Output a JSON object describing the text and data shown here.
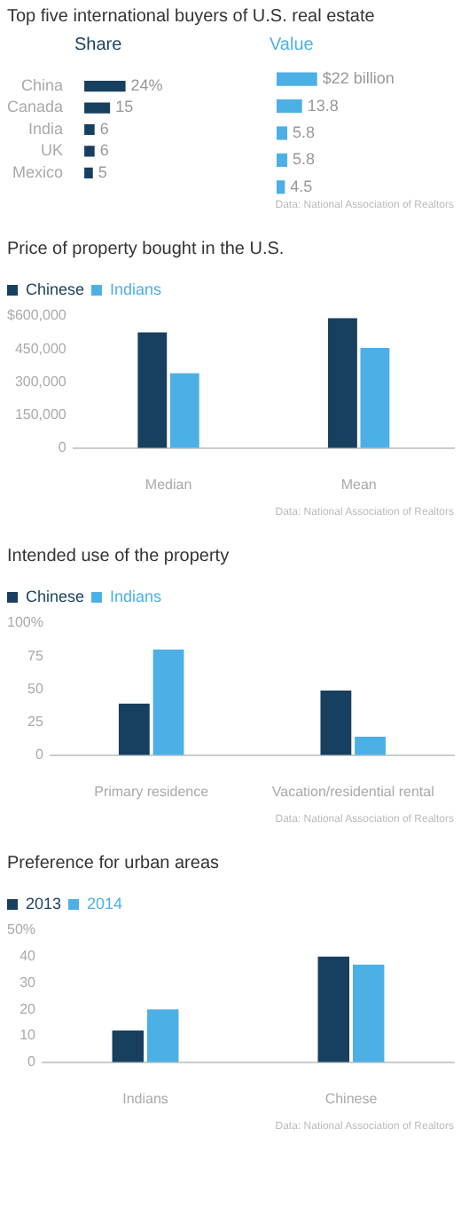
{
  "chart_data": [
    {
      "type": "bar",
      "orientation": "horizontal",
      "title": "Top five international buyers of U.S. real estate",
      "subtitle": "Share",
      "categories": [
        "China",
        "Canada",
        "India",
        "UK",
        "Mexico"
      ],
      "values": [
        24,
        15,
        6,
        6,
        5
      ],
      "value_labels": [
        "24%",
        "15",
        "6",
        "6",
        "5"
      ],
      "color": "#173f5f",
      "grid": false,
      "legend": false
    },
    {
      "type": "bar",
      "orientation": "horizontal",
      "subtitle": "Value",
      "categories": [
        null,
        null,
        null,
        null,
        null
      ],
      "values": [
        22,
        13.8,
        5.8,
        5.8,
        4.5
      ],
      "value_labels": [
        "$22 billion",
        "13.8",
        "5.8",
        "5.8",
        "4.5"
      ],
      "color": "#4cb0e6",
      "grid": false,
      "legend": false,
      "tick_labels": false,
      "annotations": [
        "Data: National Association of Realtors"
      ]
    },
    {
      "type": "bar",
      "title": "Price of property bought in the U.S.",
      "categories": [
        "Median",
        "Mean"
      ],
      "series": [
        {
          "name": "Chinese",
          "color": "#173f5f",
          "values": [
            525000,
            590000
          ]
        },
        {
          "name": "Indians",
          "color": "#4cb0e6",
          "values": [
            340000,
            455000
          ]
        }
      ],
      "ylim": [
        0,
        600000
      ],
      "yticks": [
        0,
        {
          "value": 150000,
          "label": "150,000"
        },
        {
          "value": 300000,
          "label": "300,000"
        },
        {
          "value": 450000,
          "label": "450,000"
        },
        {
          "value": 600000,
          "label": "$600,000"
        }
      ],
      "grid": false,
      "legend": "top left",
      "annotations": [
        "Data: National Association of Realtors"
      ]
    },
    {
      "type": "bar",
      "title": "Intended use of the property",
      "categories": [
        "Primary residence",
        "Vacation/residential rental"
      ],
      "series": [
        {
          "name": "Chinese",
          "color": "#173f5f",
          "values": [
            39,
            49
          ]
        },
        {
          "name": "Indians",
          "color": "#4cb0e6",
          "values": [
            80,
            14
          ]
        }
      ],
      "ylim": [
        0,
        100
      ],
      "yticks": [
        0,
        25,
        50,
        75,
        {
          "value": 100,
          "label": "100%"
        }
      ],
      "grid": false,
      "legend": "top left",
      "annotations": [
        "Data: National Association of Realtors"
      ]
    },
    {
      "type": "bar",
      "title": "Preference for urban areas",
      "categories": [
        "Indians",
        "Chinese"
      ],
      "series": [
        {
          "name": "2013",
          "color": "#173f5f",
          "values": [
            12,
            40
          ]
        },
        {
          "name": "2014",
          "color": "#4cb0e6",
          "values": [
            20,
            37
          ]
        }
      ],
      "ylim": [
        0,
        50
      ],
      "yticks": [
        0,
        10,
        20,
        30,
        40,
        {
          "value": 50,
          "label": "50%"
        }
      ],
      "grid": false,
      "legend": "top left",
      "annotations": [
        "Data: National Association of Realtors"
      ]
    }
  ]
}
